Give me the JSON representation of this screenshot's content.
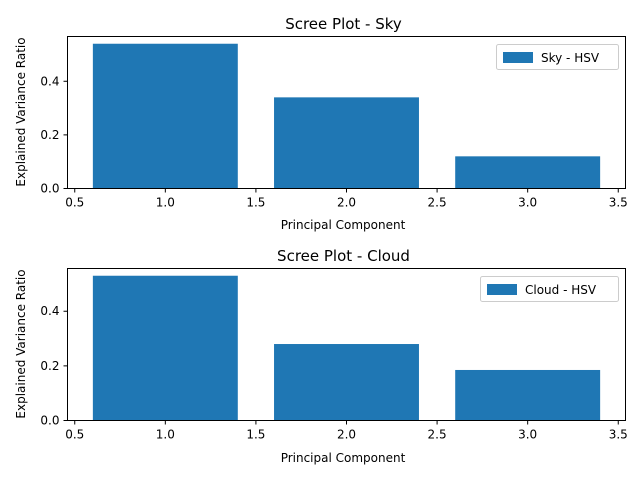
{
  "chart_data": [
    {
      "type": "bar",
      "title": "Scree Plot - Sky",
      "xlabel": "Principal Component",
      "ylabel": "Explained Variance Ratio",
      "x": [
        1,
        2,
        3
      ],
      "values": [
        0.54,
        0.34,
        0.12
      ],
      "bar_width": 0.8,
      "xlim": [
        0.46,
        3.54
      ],
      "ylim": [
        0,
        0.567
      ],
      "xticks": [
        "0.5",
        "1.0",
        "1.5",
        "2.0",
        "2.5",
        "3.0",
        "3.5"
      ],
      "yticks": [
        "0.0",
        "0.2",
        "0.4"
      ],
      "series_name": "Sky - HSV",
      "legend": "top-right",
      "color": "#1f77b4",
      "grid": false
    },
    {
      "type": "bar",
      "title": "Scree Plot - Cloud",
      "xlabel": "Principal Component",
      "ylabel": "Explained Variance Ratio",
      "x": [
        1,
        2,
        3
      ],
      "values": [
        0.53,
        0.28,
        0.185
      ],
      "bar_width": 0.8,
      "xlim": [
        0.46,
        3.54
      ],
      "ylim": [
        0,
        0.5565
      ],
      "xticks": [
        "0.5",
        "1.0",
        "1.5",
        "2.0",
        "2.5",
        "3.0",
        "3.5"
      ],
      "yticks": [
        "0.0",
        "0.2",
        "0.4"
      ],
      "series_name": "Cloud - HSV",
      "legend": "top-right",
      "color": "#1f77b4",
      "grid": false
    }
  ]
}
